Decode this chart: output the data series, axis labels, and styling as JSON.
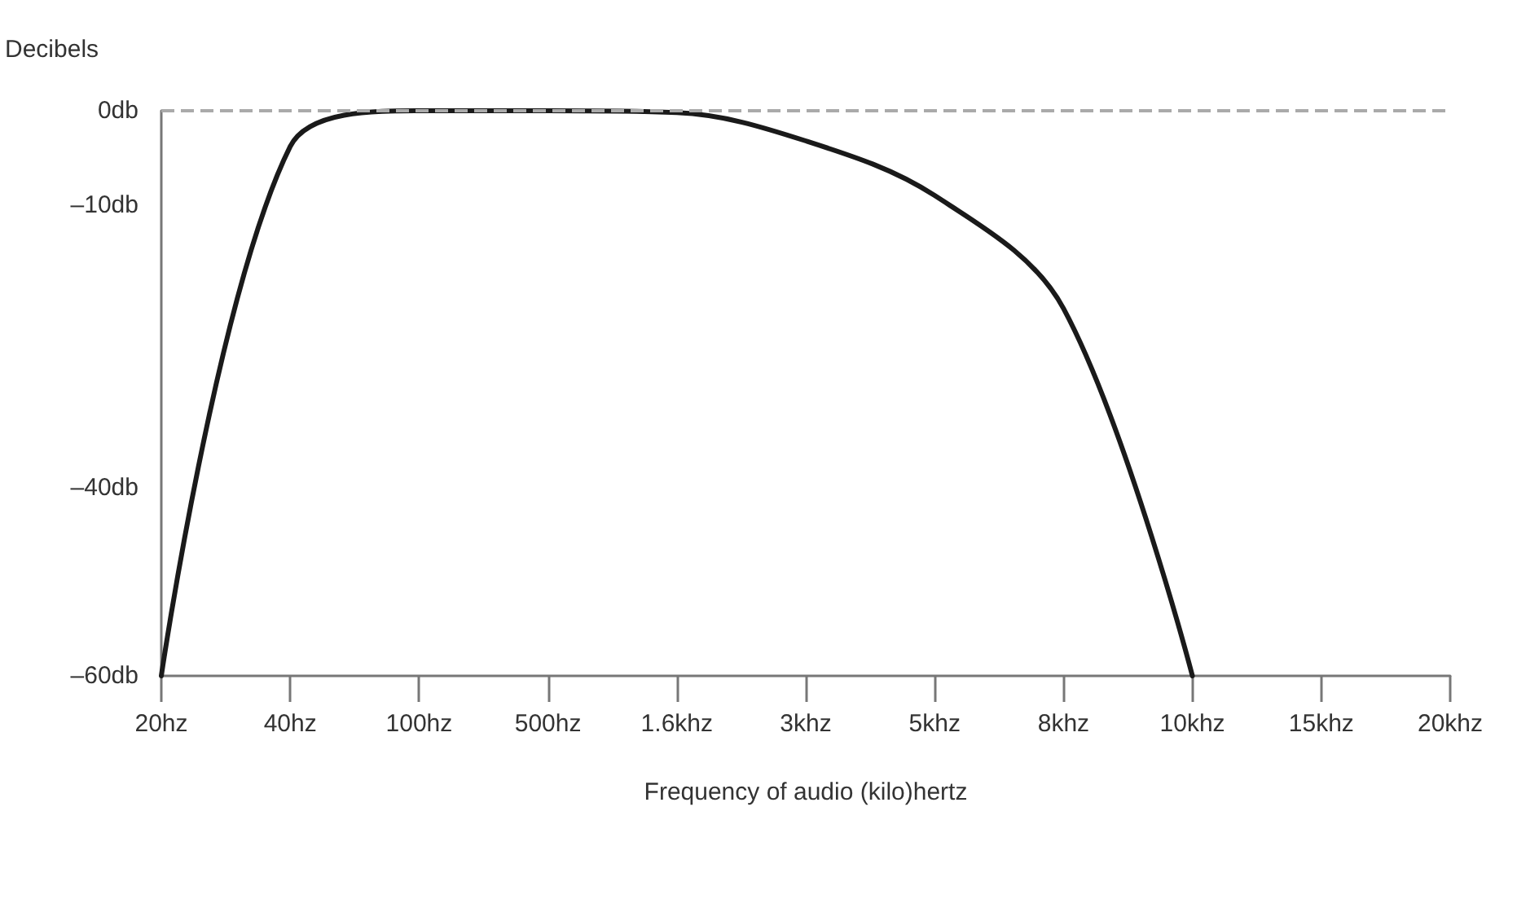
{
  "chart_data": {
    "type": "line",
    "xlabel": "Frequency of audio (kilo)hertz",
    "ylabel": "Decibels",
    "categories": [
      "20hz",
      "40hz",
      "100hz",
      "500hz",
      "1.6khz",
      "3khz",
      "5khz",
      "8khz",
      "10khz",
      "15khz",
      "20khz"
    ],
    "series": [
      {
        "color": "#1a1a1a",
        "values": [
          -60,
          -3.8,
          0,
          0,
          -0.2,
          -3.2,
          -9,
          -21,
          -60,
          null,
          null
        ]
      }
    ],
    "ylim": [
      -60,
      0
    ],
    "yticks": [
      {
        "value": -60,
        "label": "–60db"
      },
      {
        "value": -40,
        "label": "–40db"
      },
      {
        "value": -10,
        "label": "–10db"
      },
      {
        "value": 0,
        "label": "0db"
      }
    ],
    "ref_lines": [
      {
        "axis": "y",
        "value": 0,
        "color": "#aaaaaa",
        "line_style": "dashed"
      }
    ],
    "grid": false,
    "marker": "none",
    "line_style": "solid"
  }
}
